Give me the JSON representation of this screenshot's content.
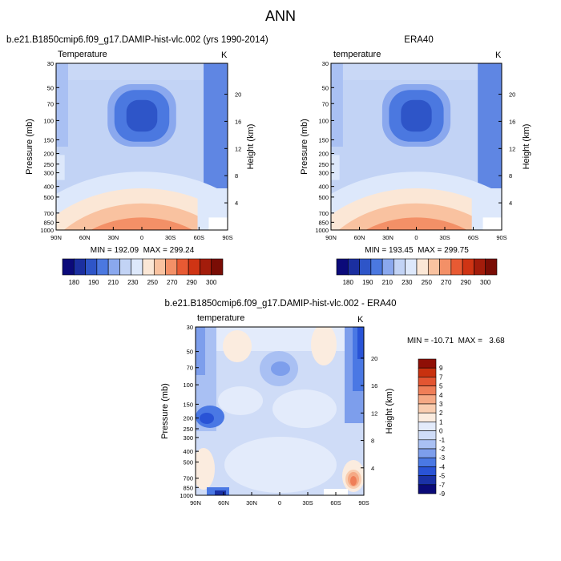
{
  "title": "ANN",
  "colors": {
    "abs_scale": [
      "#0b0a7a",
      "#1b2fa0",
      "#2e55c8",
      "#4b78e0",
      "#8aa8ee",
      "#c2d3f5",
      "#dde8fb",
      "#fbe7d6",
      "#f9c2a0",
      "#f39067",
      "#e85a33",
      "#cf3414",
      "#a31c0b",
      "#7a0d05"
    ],
    "diff_scale": [
      "#0a0a78",
      "#1a31a6",
      "#2953d6",
      "#4a78e4",
      "#7d9eec",
      "#a9c0f3",
      "#cfdcf7",
      "#e3ebfb",
      "#fbecdf",
      "#f9cdb0",
      "#f5a985",
      "#ef7e58",
      "#e35532",
      "#c8310f",
      "#8f0f06"
    ]
  },
  "plots": [
    {
      "id": "model",
      "title": "b.e21.B1850cmip6.f09_g17.DAMIP-hist-vlc.002 (yrs 1990-2014)",
      "left_label": "Temperature",
      "right_label": "K",
      "ylabel": "Pressure (mb)",
      "ylabel_right": "Height (km)",
      "minmax": "MIN = 192.09  MAX = 299.24"
    },
    {
      "id": "obs",
      "title": "ERA40",
      "left_label": "temperature",
      "right_label": "K",
      "ylabel": "Pressure (mb)",
      "ylabel_right": "Height (km)",
      "minmax": "MIN = 193.45  MAX = 299.75"
    },
    {
      "id": "diff",
      "title": "b.e21.B1850cmip6.f09_g17.DAMIP-hist-vlc.002 - ERA40",
      "left_label": "temperature",
      "right_label": "K",
      "ylabel": "Pressure (mb)",
      "ylabel_right": "Height (km)",
      "minmax": "MIN = -10.71  MAX =   3.68"
    }
  ],
  "chart_data": [
    {
      "type": "heatmap",
      "title": "b.e21.B1850cmip6.f09_g17.DAMIP-hist-vlc.002 (yrs 1990-2014)",
      "xlabel": "",
      "ylabel": "Pressure (mb)",
      "ylabel_right": "Height (km)",
      "x_ticks": [
        "90N",
        "60N",
        "30N",
        "0",
        "30S",
        "60S",
        "90S"
      ],
      "y_ticks": [
        "30",
        "50",
        "70",
        "100",
        "150",
        "200",
        "250",
        "300",
        "400",
        "500",
        "700",
        "850",
        "1000"
      ],
      "y_ticks_right": [
        "20",
        "16",
        "12",
        "8",
        "4"
      ],
      "y_scale": "log",
      "ylim": [
        1000,
        30
      ],
      "min": 192.09,
      "max": 299.24,
      "colorbar_levels": [
        "180",
        "190",
        "210",
        "230",
        "250",
        "270",
        "290",
        "300"
      ],
      "units": "K",
      "grid": false
    },
    {
      "type": "heatmap",
      "title": "ERA40",
      "xlabel": "",
      "ylabel": "Pressure (mb)",
      "ylabel_right": "Height (km)",
      "x_ticks": [
        "90N",
        "60N",
        "30N",
        "0",
        "30S",
        "60S",
        "90S"
      ],
      "y_ticks": [
        "30",
        "50",
        "70",
        "100",
        "150",
        "200",
        "250",
        "300",
        "400",
        "500",
        "700",
        "850",
        "1000"
      ],
      "y_ticks_right": [
        "20",
        "16",
        "12",
        "8",
        "4"
      ],
      "y_scale": "log",
      "ylim": [
        1000,
        30
      ],
      "min": 193.45,
      "max": 299.75,
      "colorbar_levels": [
        "180",
        "190",
        "210",
        "230",
        "250",
        "270",
        "290",
        "300"
      ],
      "units": "K",
      "grid": false
    },
    {
      "type": "heatmap",
      "title": "b.e21.B1850cmip6.f09_g17.DAMIP-hist-vlc.002 - ERA40",
      "xlabel": "",
      "ylabel": "Pressure (mb)",
      "ylabel_right": "Height (km)",
      "x_ticks": [
        "90N",
        "60N",
        "30N",
        "0",
        "30S",
        "60S",
        "90S"
      ],
      "y_ticks": [
        "30",
        "50",
        "70",
        "100",
        "150",
        "200",
        "250",
        "300",
        "400",
        "500",
        "700",
        "850",
        "1000"
      ],
      "y_ticks_right": [
        "20",
        "16",
        "12",
        "8",
        "4"
      ],
      "y_scale": "log",
      "ylim": [
        1000,
        30
      ],
      "min": -10.71,
      "max": 3.68,
      "colorbar_levels": [
        "9",
        "7",
        "5",
        "4",
        "3",
        "2",
        "1",
        "0",
        "-1",
        "-2",
        "-3",
        "-4",
        "-5",
        "-7",
        "-9"
      ],
      "units": "K",
      "grid": false
    }
  ]
}
